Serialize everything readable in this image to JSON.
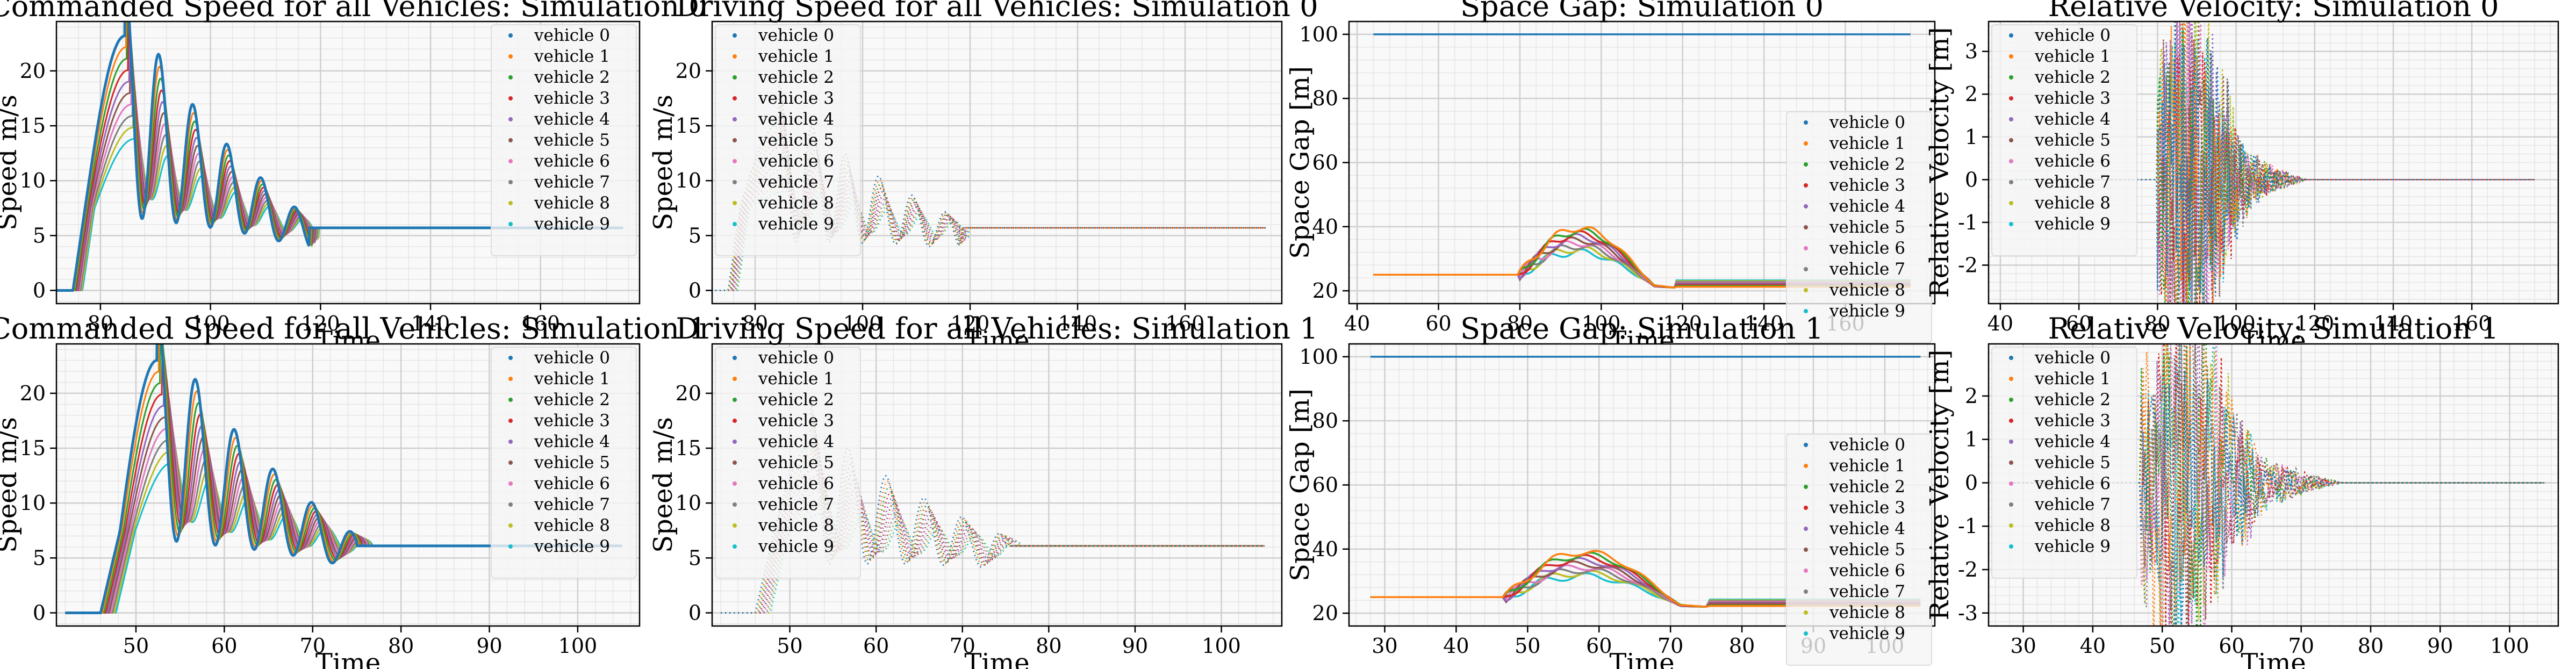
{
  "colors": [
    "#1f77b4",
    "#ff7f0e",
    "#2ca02c",
    "#d62728",
    "#9467bd",
    "#8c564b",
    "#e377c2",
    "#7f7f7f",
    "#bcbd22",
    "#17becf"
  ],
  "legend_entries": [
    "vehicle 0",
    "vehicle 1",
    "vehicle 2",
    "vehicle 3",
    "vehicle 4",
    "vehicle 5",
    "vehicle 6",
    "vehicle 7",
    "vehicle 8",
    "vehicle 9"
  ],
  "chart_data": [
    {
      "type": "scatter",
      "kind": "cmd",
      "sim": 0,
      "title": "Commanded Speed for all Vehicles: Simulation 0",
      "xlabel": "Time",
      "ylabel": "Speed m/s",
      "xlim": [
        72,
        178
      ],
      "ylim": [
        -1.2,
        24.5
      ],
      "xticks": [
        80,
        100,
        120,
        140,
        160
      ],
      "yticks": [
        0,
        5,
        10,
        15,
        20
      ],
      "grid": true,
      "legend": "upper right",
      "t_start": 75,
      "t_end": 118,
      "t_final": 175,
      "wave_period": 6.2,
      "peak": 23.2,
      "final": 5.7
    },
    {
      "type": "scatter",
      "kind": "drive",
      "sim": 0,
      "title": "Driving Speed for all Vehicles: Simulation 0",
      "xlabel": "Time",
      "ylabel": "Speed m/s",
      "xlim": [
        72,
        178
      ],
      "ylim": [
        -1.2,
        24.5
      ],
      "xticks": [
        80,
        100,
        120,
        140,
        160
      ],
      "yticks": [
        0,
        5,
        10,
        15,
        20
      ],
      "grid": true,
      "legend": "upper left",
      "t_start": 75,
      "t_end": 118,
      "t_final": 175,
      "wave_period": 6.2,
      "peak": 18.5,
      "final": 5.7
    },
    {
      "type": "line",
      "kind": "gap",
      "sim": 0,
      "title": "Space Gap: Simulation 0",
      "xlabel": "Time",
      "ylabel": "Space Gap [m]",
      "xlim": [
        38,
        182
      ],
      "ylim": [
        16,
        104
      ],
      "xticks": [
        40,
        60,
        80,
        100,
        120,
        140,
        160
      ],
      "yticks": [
        20,
        40,
        60,
        80,
        100
      ],
      "grid": true,
      "legend": "right",
      "t0": 44,
      "t_start": 80,
      "t_end": 118,
      "t_final": 176,
      "leader_gap": 100,
      "base_gap": 25,
      "peak_gap": 45,
      "final_gap": 21
    },
    {
      "type": "scatter",
      "kind": "rel",
      "sim": 0,
      "title": "Relative Velocity: Simulation 0",
      "xlabel": "Time",
      "ylabel": "Relative Velocity [m]",
      "xlim": [
        37,
        182
      ],
      "ylim": [
        -2.9,
        3.7
      ],
      "xticks": [
        40,
        60,
        80,
        100,
        120,
        140,
        160
      ],
      "yticks": [
        -2,
        -1,
        0,
        1,
        2,
        3
      ],
      "grid": true,
      "legend": "upper left",
      "t0": 44,
      "t_start": 80,
      "t_end": 118,
      "t_final": 176,
      "amp": 3.3
    },
    {
      "type": "scatter",
      "kind": "cmd",
      "sim": 1,
      "title": "Commanded Speed for all Vehicles: Simulation 1",
      "xlabel": "Time",
      "ylabel": "Speed m/s",
      "xlim": [
        41,
        107
      ],
      "ylim": [
        -1.2,
        24.5
      ],
      "xticks": [
        50,
        60,
        70,
        80,
        90,
        100
      ],
      "yticks": [
        0,
        5,
        10,
        15,
        20
      ],
      "grid": true,
      "legend": "upper right",
      "t_start": 46,
      "t_end": 75,
      "t_final": 105,
      "wave_period": 4.4,
      "peak": 23.0,
      "final": 6.1
    },
    {
      "type": "scatter",
      "kind": "drive",
      "sim": 1,
      "title": "Driving Speed for all Vehicles: Simulation 1",
      "xlabel": "Time",
      "ylabel": "Speed m/s",
      "xlim": [
        41,
        107
      ],
      "ylim": [
        -1.2,
        24.5
      ],
      "xticks": [
        50,
        60,
        70,
        80,
        90,
        100
      ],
      "yticks": [
        0,
        5,
        10,
        15,
        20
      ],
      "grid": true,
      "legend": "upper left",
      "t_start": 46,
      "t_end": 75,
      "t_final": 105,
      "wave_period": 4.4,
      "peak": 18.5,
      "final": 6.1
    },
    {
      "type": "line",
      "kind": "gap",
      "sim": 1,
      "title": "Space Gap: Simulation 1",
      "xlabel": "Time",
      "ylabel": "Space Gap [m]",
      "xlim": [
        25,
        107
      ],
      "ylim": [
        16,
        104
      ],
      "xticks": [
        30,
        40,
        50,
        60,
        70,
        80,
        90,
        100
      ],
      "yticks": [
        20,
        40,
        60,
        80,
        100
      ],
      "grid": true,
      "legend": "right",
      "t0": 28,
      "t_start": 47,
      "t_end": 75,
      "t_final": 105,
      "leader_gap": 100,
      "base_gap": 25,
      "peak_gap": 44,
      "final_gap": 22
    },
    {
      "type": "scatter",
      "kind": "rel",
      "sim": 1,
      "title": "Relative Velocity: Simulation 1",
      "xlabel": "Time",
      "ylabel": "Relative Velocity [m]",
      "xlim": [
        25,
        107
      ],
      "ylim": [
        -3.3,
        3.2
      ],
      "xticks": [
        30,
        40,
        50,
        60,
        70,
        80,
        90,
        100
      ],
      "yticks": [
        -3,
        -2,
        -1,
        0,
        1,
        2
      ],
      "grid": true,
      "legend": "upper left",
      "t0": 28,
      "t_start": 47,
      "t_end": 76,
      "t_final": 105,
      "amp": 2.9
    }
  ]
}
